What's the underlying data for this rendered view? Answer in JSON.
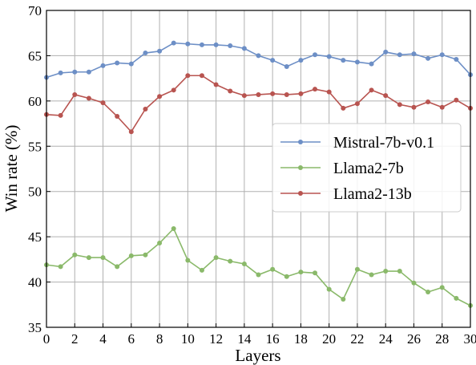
{
  "chart_data": {
    "type": "line",
    "xlabel": "Layers",
    "ylabel": "Win rate (%)",
    "xlim": [
      0,
      30
    ],
    "ylim": [
      35,
      70
    ],
    "xticks": [
      0,
      2,
      4,
      6,
      8,
      10,
      12,
      14,
      16,
      18,
      20,
      22,
      24,
      26,
      28,
      30
    ],
    "yticks": [
      35,
      40,
      45,
      50,
      55,
      60,
      65,
      70
    ],
    "grid": true,
    "legend_position": "center-right",
    "x": [
      0,
      1,
      2,
      3,
      4,
      5,
      6,
      7,
      8,
      9,
      10,
      11,
      12,
      13,
      14,
      15,
      16,
      17,
      18,
      19,
      20,
      21,
      22,
      23,
      24,
      25,
      26,
      27,
      28,
      29,
      30
    ],
    "series": [
      {
        "name": "Mistral-7b-v0.1",
        "color": "#6d8fc6",
        "values": [
          62.6,
          63.1,
          63.2,
          63.2,
          63.9,
          64.2,
          64.1,
          65.3,
          65.5,
          66.4,
          66.3,
          66.2,
          66.2,
          66.1,
          65.8,
          65.0,
          64.5,
          63.8,
          64.5,
          65.1,
          64.9,
          64.5,
          64.3,
          64.1,
          65.4,
          65.1,
          65.2,
          64.7,
          65.1,
          64.6,
          62.9
        ]
      },
      {
        "name": "Llama2-7b",
        "color": "#8ab96a",
        "values": [
          41.9,
          41.7,
          43.0,
          42.7,
          42.7,
          41.7,
          42.9,
          43.0,
          44.3,
          45.9,
          42.4,
          41.3,
          42.7,
          42.3,
          42.0,
          40.8,
          41.4,
          40.6,
          41.1,
          41.0,
          39.2,
          38.1,
          41.4,
          40.8,
          41.2,
          41.2,
          39.9,
          38.9,
          39.4,
          38.2,
          37.4
        ]
      },
      {
        "name": "Llama2-13b",
        "color": "#b85450",
        "values": [
          58.5,
          58.4,
          60.7,
          60.3,
          59.8,
          58.3,
          56.6,
          59.1,
          60.5,
          61.2,
          62.8,
          62.8,
          61.8,
          61.1,
          60.6,
          60.7,
          60.8,
          60.7,
          60.8,
          61.3,
          61.0,
          59.2,
          59.7,
          61.2,
          60.6,
          59.6,
          59.3,
          59.9,
          59.3,
          60.1,
          59.2
        ]
      }
    ]
  }
}
